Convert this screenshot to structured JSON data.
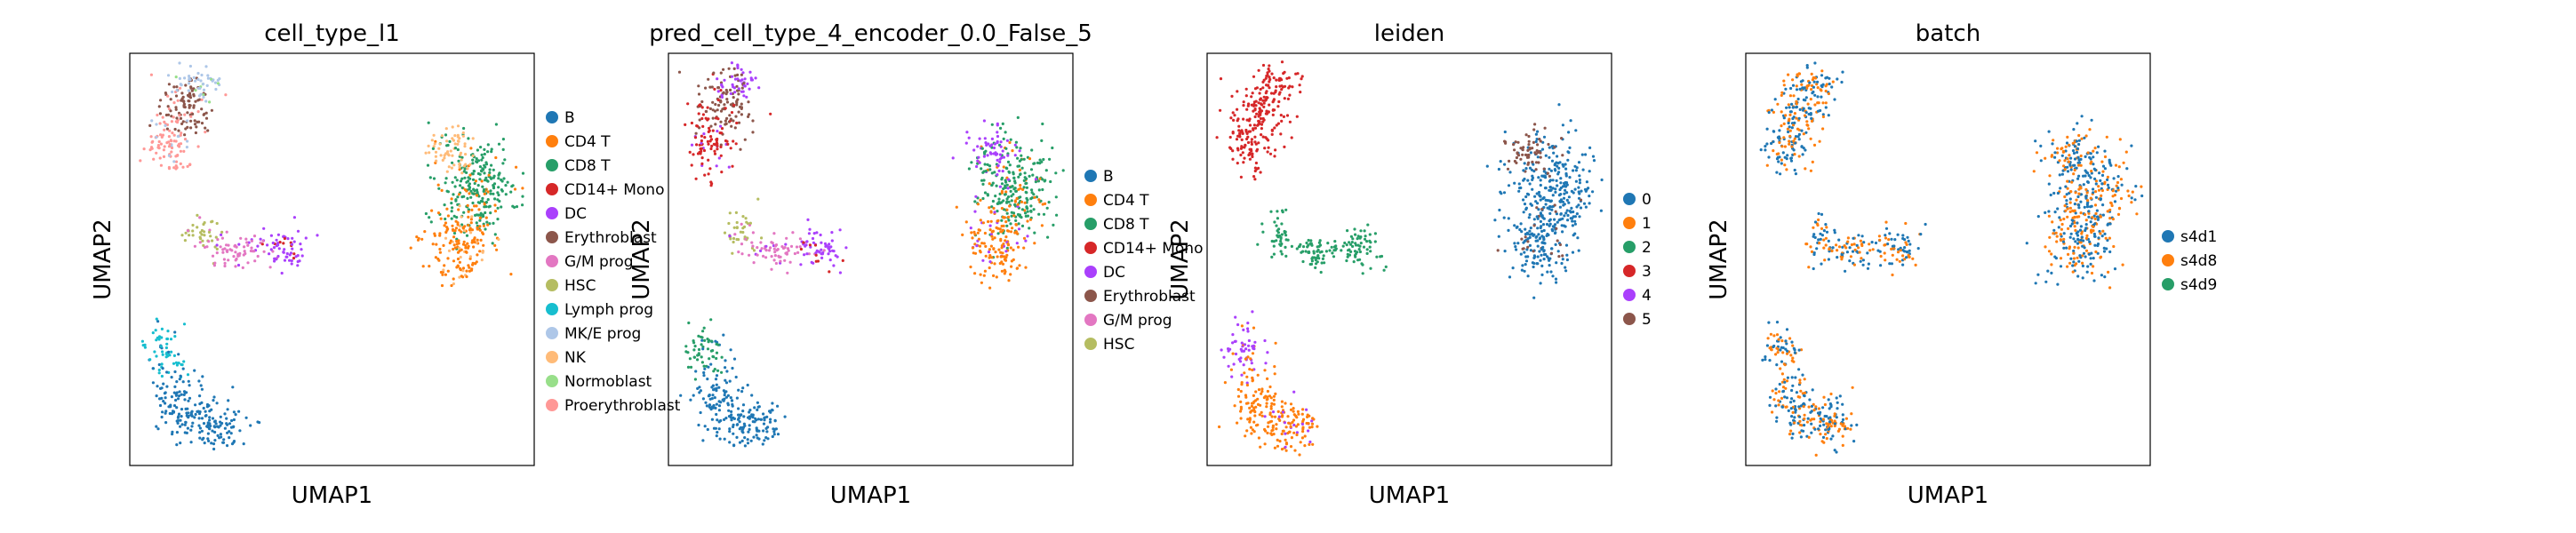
{
  "figure": {
    "background": "#ffffff"
  },
  "chart_data": [
    {
      "type": "scatter",
      "title": "cell_type_l1",
      "xlabel": "UMAP1",
      "ylabel": "UMAP2",
      "grid": false,
      "legend_placement": "right",
      "legend": [
        {
          "label": "B",
          "color": "#1f77b4"
        },
        {
          "label": "CD4 T",
          "color": "#ff7f0e"
        },
        {
          "label": "CD8 T",
          "color": "#279e68"
        },
        {
          "label": "CD14+ Mono",
          "color": "#d62728"
        },
        {
          "label": "DC",
          "color": "#aa40fc"
        },
        {
          "label": "Erythroblast",
          "color": "#8c564b"
        },
        {
          "label": "G/M prog",
          "color": "#e377c2"
        },
        {
          "label": "HSC",
          "color": "#b5bd61"
        },
        {
          "label": "Lymph prog",
          "color": "#17becf"
        },
        {
          "label": "MK/E prog",
          "color": "#aec7e8"
        },
        {
          "label": "NK",
          "color": "#ffbb78"
        },
        {
          "label": "Normoblast",
          "color": "#98df8a"
        },
        {
          "label": "Proerythroblast",
          "color": "#ff9896"
        }
      ]
    },
    {
      "type": "scatter",
      "title": "pred_cell_type_4_encoder_0.0_False_5",
      "xlabel": "UMAP1",
      "ylabel": "UMAP2",
      "grid": false,
      "legend_placement": "right",
      "legend": [
        {
          "label": "B",
          "color": "#1f77b4"
        },
        {
          "label": "CD4 T",
          "color": "#ff7f0e"
        },
        {
          "label": "CD8 T",
          "color": "#279e68"
        },
        {
          "label": "CD14+ Mono",
          "color": "#d62728"
        },
        {
          "label": "DC",
          "color": "#aa40fc"
        },
        {
          "label": "Erythroblast",
          "color": "#8c564b"
        },
        {
          "label": "G/M prog",
          "color": "#e377c2"
        },
        {
          "label": "HSC",
          "color": "#b5bd61"
        }
      ]
    },
    {
      "type": "scatter",
      "title": "leiden",
      "xlabel": "UMAP1",
      "ylabel": "UMAP2",
      "grid": false,
      "legend_placement": "right",
      "legend": [
        {
          "label": "0",
          "color": "#1f77b4"
        },
        {
          "label": "1",
          "color": "#ff7f0e"
        },
        {
          "label": "2",
          "color": "#279e68"
        },
        {
          "label": "3",
          "color": "#d62728"
        },
        {
          "label": "4",
          "color": "#aa40fc"
        },
        {
          "label": "5",
          "color": "#8c564b"
        }
      ]
    },
    {
      "type": "scatter",
      "title": "batch",
      "xlabel": "UMAP1",
      "ylabel": "UMAP2",
      "grid": false,
      "legend_placement": "right",
      "legend": [
        {
          "label": "s4d1",
          "color": "#1f77b4"
        },
        {
          "label": "s4d8",
          "color": "#ff7f0e"
        },
        {
          "label": "s4d9",
          "color": "#279e68"
        }
      ]
    }
  ]
}
